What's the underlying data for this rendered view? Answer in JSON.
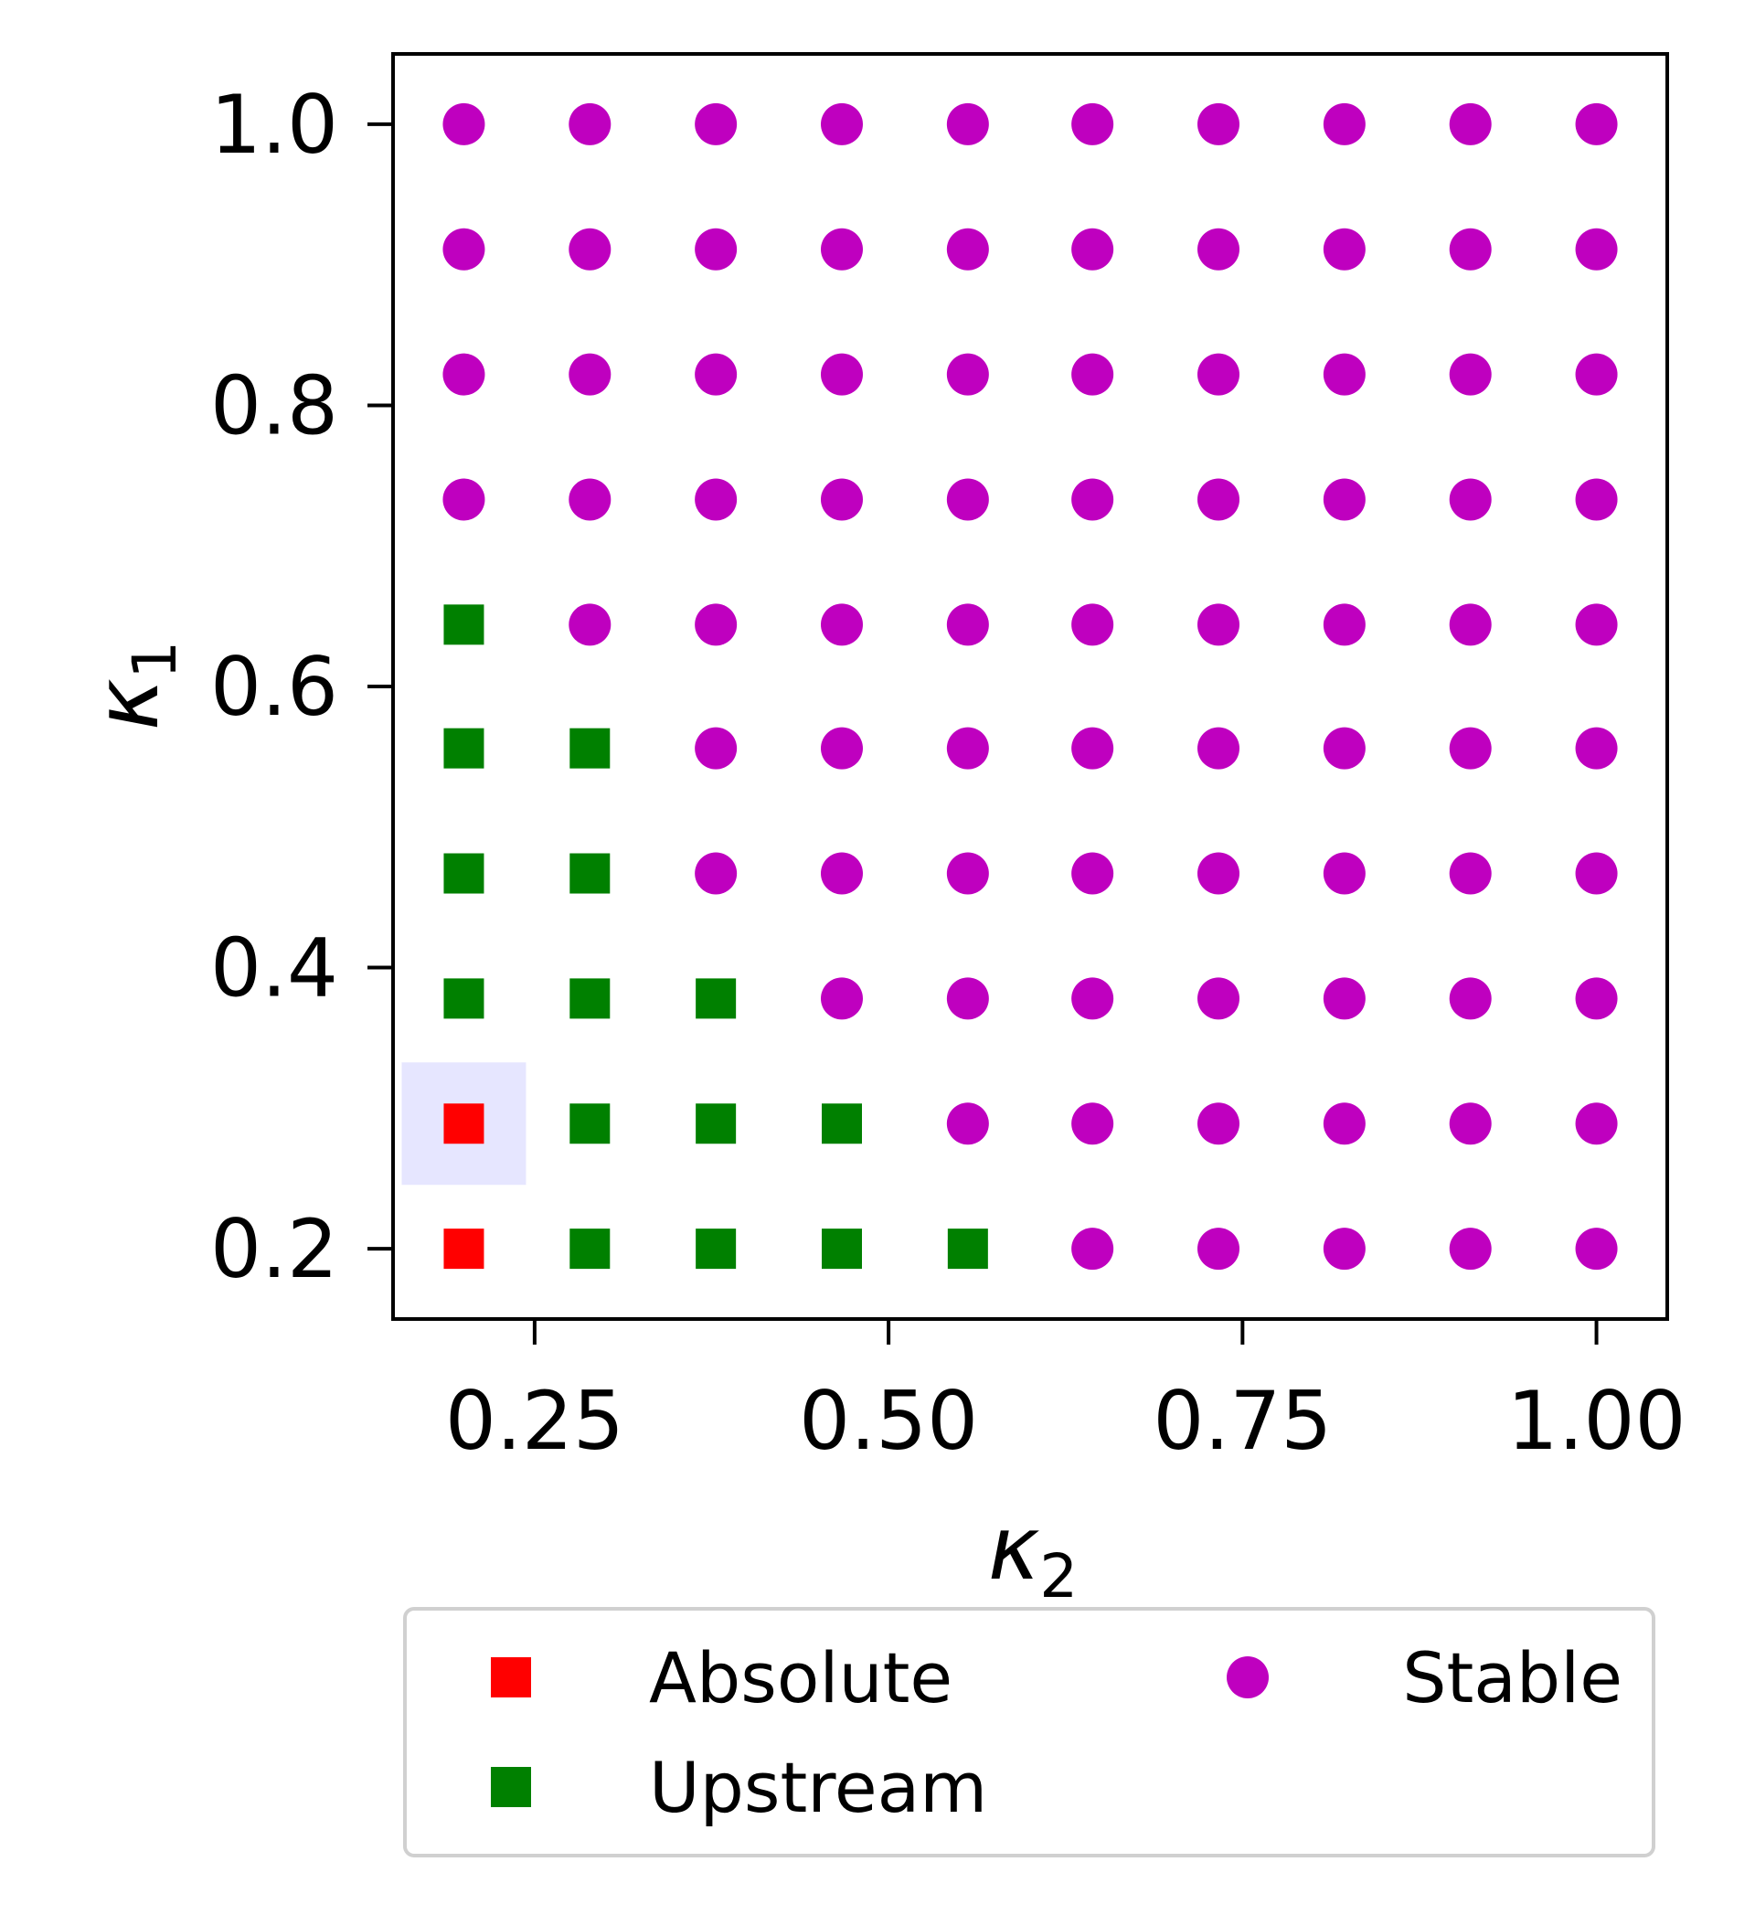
{
  "chart_data": {
    "type": "scatter",
    "title": "",
    "xlabel": "κ",
    "xlabel_sub": "2",
    "ylabel": "κ",
    "ylabel_sub": "1",
    "xlim": [
      0.15,
      1.05
    ],
    "ylim": [
      0.15,
      1.05
    ],
    "xticks": [
      {
        "value": 0.25,
        "label": "0.25"
      },
      {
        "value": 0.5,
        "label": "0.50"
      },
      {
        "value": 0.75,
        "label": "0.75"
      },
      {
        "value": 1.0,
        "label": "1.00"
      }
    ],
    "yticks": [
      {
        "value": 0.2,
        "label": "0.2"
      },
      {
        "value": 0.4,
        "label": "0.4"
      },
      {
        "value": 0.6,
        "label": "0.6"
      },
      {
        "value": 0.8,
        "label": "0.8"
      },
      {
        "value": 1.0,
        "label": "1.0"
      }
    ],
    "grid": false,
    "legend_position": "below",
    "grid_values": [
      0.2,
      0.289,
      0.378,
      0.467,
      0.556,
      0.644,
      0.733,
      0.822,
      0.911,
      1.0
    ],
    "series": [
      {
        "name": "Absolute",
        "marker": "square",
        "color": "#ff0000",
        "points": [
          [
            0.2,
            0.2
          ],
          [
            0.2,
            0.289
          ]
        ]
      },
      {
        "name": "Upstream",
        "marker": "square",
        "color": "#008000",
        "points": [
          [
            0.289,
            0.2
          ],
          [
            0.378,
            0.2
          ],
          [
            0.467,
            0.2
          ],
          [
            0.556,
            0.2
          ],
          [
            0.289,
            0.289
          ],
          [
            0.378,
            0.289
          ],
          [
            0.467,
            0.289
          ],
          [
            0.2,
            0.378
          ],
          [
            0.289,
            0.378
          ],
          [
            0.378,
            0.378
          ],
          [
            0.2,
            0.467
          ],
          [
            0.289,
            0.467
          ],
          [
            0.2,
            0.556
          ],
          [
            0.289,
            0.556
          ],
          [
            0.2,
            0.644
          ]
        ]
      },
      {
        "name": "Stable",
        "marker": "circle",
        "color": "#bf00bf",
        "points": "all remaining grid points"
      }
    ],
    "highlight": {
      "point": [
        0.2,
        0.289
      ],
      "color": "#e6e6ff"
    }
  }
}
